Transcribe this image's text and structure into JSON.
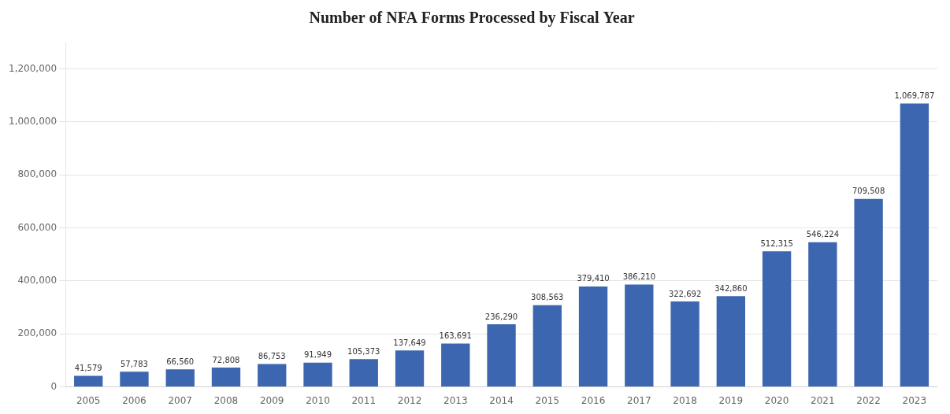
{
  "chart_data": {
    "type": "bar",
    "title": "Number of NFA Forms Processed by Fiscal Year",
    "categories": [
      "2005",
      "2006",
      "2007",
      "2008",
      "2009",
      "2010",
      "2011",
      "2012",
      "2013",
      "2014",
      "2015",
      "2016",
      "2017",
      "2018",
      "2019",
      "2020",
      "2021",
      "2022",
      "2023"
    ],
    "values": [
      41579,
      57783,
      66560,
      72808,
      86753,
      91949,
      105373,
      137649,
      163691,
      236290,
      308563,
      379410,
      386210,
      322692,
      342860,
      512315,
      546224,
      709508,
      1069787
    ],
    "value_labels": [
      "41,579",
      "57,783",
      "66,560",
      "72,808",
      "86,753",
      "91,949",
      "105,373",
      "137,649",
      "163,691",
      "236,290",
      "308,563",
      "379,410",
      "386,210",
      "322,692",
      "342,860",
      "512,315",
      "546,224",
      "709,508",
      "1,069,787"
    ],
    "data_labels": true,
    "color": "#3C67B0",
    "ylim": [
      0,
      1300000
    ],
    "yticks": [
      0,
      {
        "value": 200000,
        "label": "200,000"
      },
      {
        "value": 400000,
        "label": "400,000"
      },
      {
        "value": 600000,
        "label": "600,000"
      },
      {
        "value": 800000,
        "label": "800,000"
      },
      {
        "value": 1000000,
        "label": "1,000,000"
      },
      {
        "value": 1200000,
        "label": "1,200,000"
      }
    ],
    "grid": true
  }
}
